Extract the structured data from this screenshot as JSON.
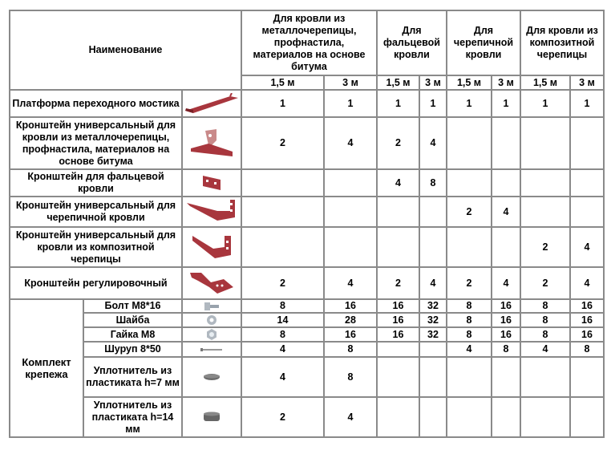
{
  "header": {
    "name_label": "Наименование",
    "groups": [
      "Для кровли из металлочерепицы, профнастила, материалов на основе битума",
      "Для фальцевой кровли",
      "Для черепичной кровли",
      "Для кровли из композитной черепицы"
    ],
    "lengths": [
      "1,5 м",
      "3 м"
    ]
  },
  "colors": {
    "part": "#a8363d",
    "border": "#8a8a8a",
    "metal": "#b0b8c0"
  },
  "items": [
    {
      "name": "Платформа переходного мостика",
      "icon": "platform-icon",
      "values": [
        "1",
        "1",
        "1",
        "1",
        "1",
        "1",
        "1",
        "1"
      ]
    },
    {
      "name": "Кронштейн универсальный для кровли из металлочерепицы, профнастила, материалов на основе битума",
      "icon": "bracket-universal-icon",
      "values": [
        "2",
        "4",
        "2",
        "4",
        "",
        "",
        "",
        ""
      ]
    },
    {
      "name": "Кронштейн для фальцевой кровли",
      "icon": "bracket-seam-icon",
      "values": [
        "",
        "",
        "4",
        "8",
        "",
        "",
        "",
        ""
      ]
    },
    {
      "name": "Кронштейн универсальный для черепичной кровли",
      "icon": "bracket-tile-icon",
      "values": [
        "",
        "",
        "",
        "",
        "2",
        "4",
        "",
        ""
      ]
    },
    {
      "name": "Кронштейн универсальный для кровли из композитной черепицы",
      "icon": "bracket-composite-icon",
      "values": [
        "",
        "",
        "",
        "",
        "",
        "",
        "2",
        "4"
      ]
    },
    {
      "name": "Кронштейн регулировочный",
      "icon": "bracket-adjustable-icon",
      "values": [
        "2",
        "4",
        "2",
        "4",
        "2",
        "4",
        "2",
        "4"
      ]
    }
  ],
  "kit": {
    "label": "Комплект крепежа",
    "items": [
      {
        "name": "Болт М8*16",
        "icon": "bolt-icon",
        "values": [
          "8",
          "16",
          "16",
          "32",
          "8",
          "16",
          "8",
          "16"
        ]
      },
      {
        "name": "Шайба",
        "icon": "washer-icon",
        "values": [
          "14",
          "28",
          "16",
          "32",
          "8",
          "16",
          "8",
          "16"
        ]
      },
      {
        "name": "Гайка М8",
        "icon": "nut-icon",
        "values": [
          "8",
          "16",
          "16",
          "32",
          "8",
          "16",
          "8",
          "16"
        ]
      },
      {
        "name": "Шуруп 8*50",
        "icon": "screw-icon",
        "values": [
          "4",
          "8",
          "",
          "",
          "4",
          "8",
          "4",
          "8"
        ]
      },
      {
        "name": "Уплотнитель из пластиката h=7 мм",
        "icon": "seal-thin-icon",
        "values": [
          "4",
          "8",
          "",
          "",
          "",
          "",
          "",
          ""
        ]
      },
      {
        "name": "Уплотнитель из пластиката h=14 мм",
        "icon": "seal-thick-icon",
        "values": [
          "2",
          "4",
          "",
          "",
          "",
          "",
          "",
          ""
        ]
      }
    ]
  }
}
